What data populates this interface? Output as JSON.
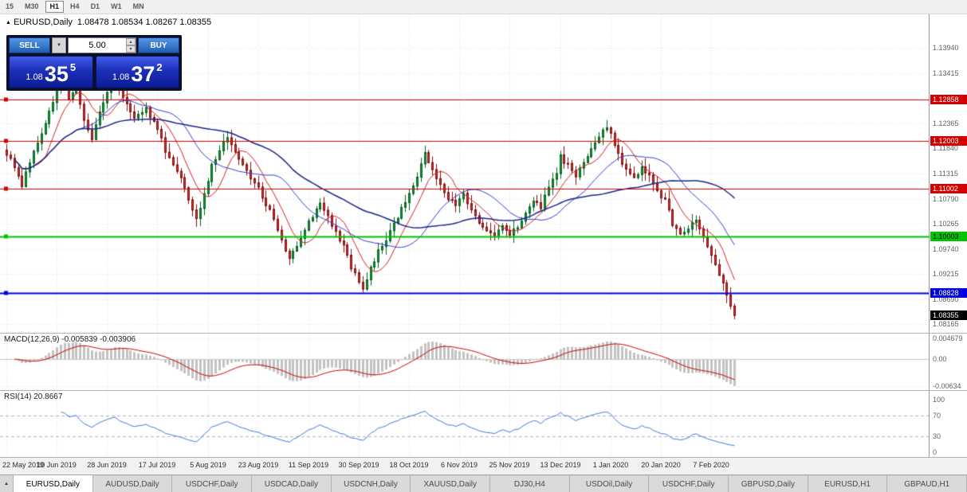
{
  "icons": {
    "dropdown": "▼",
    "spin_up": "▲",
    "spin_down": "▼",
    "title_marker": "▲",
    "tab_list": "▲"
  },
  "toolbar": {
    "timeframes": [
      {
        "label": "15"
      },
      {
        "label": "M30"
      },
      {
        "label": "H1",
        "active": true
      },
      {
        "label": "H4"
      },
      {
        "label": "D1"
      },
      {
        "label": "W1"
      },
      {
        "label": "MN"
      }
    ]
  },
  "chart": {
    "symbol_label": "EURUSD,Daily",
    "ohlc_text": "1.08478 1.08534 1.08267 1.08355",
    "price_axis_ticks": [
      {
        "label": "1.13940",
        "value": 1.1394
      },
      {
        "label": "1.13415",
        "value": 1.13415
      },
      {
        "label": "1.12890",
        "value": 1.1289
      },
      {
        "label": "1.12365",
        "value": 1.12365
      },
      {
        "label": "1.11840",
        "value": 1.1184
      },
      {
        "label": "1.11315",
        "value": 1.11315
      },
      {
        "label": "1.10790",
        "value": 1.1079
      },
      {
        "label": "1.10265",
        "value": 1.10265
      },
      {
        "label": "1.09740",
        "value": 1.0974
      },
      {
        "label": "1.09215",
        "value": 1.09215
      },
      {
        "label": "1.08690",
        "value": 1.0869
      },
      {
        "label": "1.08165",
        "value": 1.08165
      }
    ],
    "hlines": [
      {
        "label": "1.12858",
        "value": 1.12858,
        "color": "#d40000",
        "text_color": "#ffffff",
        "line_width": 1
      },
      {
        "label": "1.12003",
        "value": 1.12003,
        "color": "#d40000",
        "text_color": "#ffffff",
        "line_width": 1
      },
      {
        "label": "1.11002",
        "value": 1.11002,
        "color": "#d40000",
        "text_color": "#ffffff",
        "line_width": 1
      },
      {
        "label": "1.10003",
        "value": 1.10003,
        "color": "#00c400",
        "text_color": "#000000",
        "line_width": 2
      },
      {
        "label": "1.08828",
        "value": 1.08828,
        "color": "#0000dd",
        "text_color": "#ffffff",
        "line_width": 2
      }
    ],
    "current_price": {
      "label": "1.08355",
      "value": 1.08355,
      "bg": "#000000",
      "text_color": "#ffffff"
    },
    "dates": [
      {
        "label": "22 May 2019",
        "index": 0
      },
      {
        "label": "10 Jun 2019",
        "index": 13
      },
      {
        "label": "28 Jun 2019",
        "index": 26
      },
      {
        "label": "17 Jul 2019",
        "index": 39
      },
      {
        "label": "5 Aug 2019",
        "index": 52
      },
      {
        "label": "23 Aug 2019",
        "index": 65
      },
      {
        "label": "11 Sep 2019",
        "index": 78
      },
      {
        "label": "30 Sep 2019",
        "index": 91
      },
      {
        "label": "18 Oct 2019",
        "index": 104
      },
      {
        "label": "6 Nov 2019",
        "index": 117
      },
      {
        "label": "25 Nov 2019",
        "index": 130
      },
      {
        "label": "13 Dec 2019",
        "index": 143
      },
      {
        "label": "1 Jan 2020",
        "index": 156
      },
      {
        "label": "20 Jan 2020",
        "index": 169
      },
      {
        "label": "7 Feb 2020",
        "index": 182
      }
    ]
  },
  "trade_panel": {
    "sell_label": "SELL",
    "buy_label": "BUY",
    "volume": "5.00",
    "sell_price": {
      "prefix": "1.08",
      "big": "35",
      "sup": "5"
    },
    "buy_price": {
      "prefix": "1.08",
      "big": "37",
      "sup": "2"
    }
  },
  "indicators": {
    "macd": {
      "label": "MACD(12,26,9) -0.005839 -0.003906",
      "main_value": -0.005839,
      "signal_value": -0.003906,
      "axis_ticks": [
        {
          "label": "0.004679",
          "value": 0.004679
        },
        {
          "label": "0.00",
          "value": 0
        },
        {
          "label": "-0.00634",
          "value": -0.00634
        }
      ]
    },
    "rsi": {
      "label": "RSI(14) 20.8667",
      "value": 20.8667,
      "axis_ticks": [
        {
          "label": "100",
          "value": 100
        },
        {
          "label": "70",
          "value": 70
        },
        {
          "label": "30",
          "value": 30
        },
        {
          "label": "0",
          "value": 0
        }
      ]
    }
  },
  "tabs": [
    {
      "label": "EURUSD,Daily",
      "active": true
    },
    {
      "label": "AUDUSD,Daily"
    },
    {
      "label": "USDCHF,Daily"
    },
    {
      "label": "USDCAD,Daily"
    },
    {
      "label": "USDCNH,Daily"
    },
    {
      "label": "XAUUSD,Daily"
    },
    {
      "label": "DJ30,H4"
    },
    {
      "label": "USDOil,Daily"
    },
    {
      "label": "USDCHF,Daily"
    },
    {
      "label": "GBPUSD,Daily"
    },
    {
      "label": "EURUSD,H1"
    },
    {
      "label": "GBPAUD,H1"
    }
  ],
  "chart_data": {
    "type": "candlestick",
    "symbol": "EURUSD",
    "timeframe": "Daily",
    "candle_count": 189,
    "price_range": [
      1.0799,
      1.1464
    ],
    "first_date": "22 May 2019",
    "last_date": "13 Feb 2020",
    "close_anchors": [
      [
        0,
        1.1175
      ],
      [
        2,
        1.1142
      ],
      [
        4,
        1.1108
      ],
      [
        6,
        1.1158
      ],
      [
        9,
        1.1212
      ],
      [
        11,
        1.1262
      ],
      [
        13,
        1.1305
      ],
      [
        14,
        1.1328
      ],
      [
        16,
        1.1288
      ],
      [
        18,
        1.1315
      ],
      [
        20,
        1.124
      ],
      [
        22,
        1.1205
      ],
      [
        24,
        1.1258
      ],
      [
        26,
        1.1305
      ],
      [
        28,
        1.1335
      ],
      [
        30,
        1.1288
      ],
      [
        33,
        1.1252
      ],
      [
        36,
        1.1268
      ],
      [
        39,
        1.1225
      ],
      [
        41,
        1.1182
      ],
      [
        43,
        1.1152
      ],
      [
        45,
        1.1128
      ],
      [
        47,
        1.1082
      ],
      [
        49,
        1.104
      ],
      [
        51,
        1.1088
      ],
      [
        53,
        1.1148
      ],
      [
        55,
        1.1182
      ],
      [
        57,
        1.1205
      ],
      [
        59,
        1.118
      ],
      [
        61,
        1.1148
      ],
      [
        63,
        1.1122
      ],
      [
        65,
        1.1102
      ],
      [
        67,
        1.1068
      ],
      [
        69,
        1.1038
      ],
      [
        71,
        1.0992
      ],
      [
        73,
        1.0952
      ],
      [
        75,
        1.0985
      ],
      [
        77,
        1.1018
      ],
      [
        79,
        1.1042
      ],
      [
        81,
        1.1068
      ],
      [
        83,
        1.1042
      ],
      [
        85,
        1.1012
      ],
      [
        87,
        1.0978
      ],
      [
        89,
        1.0938
      ],
      [
        91,
        1.0908
      ],
      [
        92,
        1.0892
      ],
      [
        94,
        1.0932
      ],
      [
        96,
        1.0968
      ],
      [
        98,
        1.0995
      ],
      [
        100,
        1.1028
      ],
      [
        102,
        1.1058
      ],
      [
        104,
        1.1088
      ],
      [
        106,
        1.1122
      ],
      [
        108,
        1.1172
      ],
      [
        110,
        1.1142
      ],
      [
        112,
        1.1112
      ],
      [
        114,
        1.1078
      ],
      [
        116,
        1.1068
      ],
      [
        118,
        1.1088
      ],
      [
        120,
        1.1058
      ],
      [
        122,
        1.1032
      ],
      [
        124,
        1.1012
      ],
      [
        126,
        1.1005
      ],
      [
        128,
        1.1022
      ],
      [
        130,
        1.1002
      ],
      [
        132,
        1.1022
      ],
      [
        134,
        1.1052
      ],
      [
        136,
        1.1078
      ],
      [
        138,
        1.1062
      ],
      [
        140,
        1.1102
      ],
      [
        142,
        1.1128
      ],
      [
        143,
        1.1168
      ],
      [
        145,
        1.1148
      ],
      [
        147,
        1.1122
      ],
      [
        149,
        1.1158
      ],
      [
        151,
        1.1185
      ],
      [
        153,
        1.1208
      ],
      [
        155,
        1.1232
      ],
      [
        156,
        1.1215
      ],
      [
        158,
        1.1172
      ],
      [
        160,
        1.1142
      ],
      [
        162,
        1.1122
      ],
      [
        164,
        1.1148
      ],
      [
        166,
        1.1128
      ],
      [
        168,
        1.1095
      ],
      [
        170,
        1.1075
      ],
      [
        172,
        1.1028
      ],
      [
        174,
        1.1002
      ],
      [
        176,
        1.1015
      ],
      [
        178,
        1.1038
      ],
      [
        180,
        1.1002
      ],
      [
        182,
        1.0962
      ],
      [
        184,
        1.0922
      ],
      [
        186,
        1.0875
      ],
      [
        188,
        1.0836
      ]
    ],
    "bull_color": "#0ba23c",
    "bear_color": "#e23030",
    "moving_averages": [
      {
        "period": 8,
        "color": "#d62020",
        "width": 1
      },
      {
        "period": 20,
        "color": "#2b3fd0",
        "width": 1
      },
      {
        "period": 45,
        "color": "#1b2488",
        "width": 1.5
      }
    ],
    "macd": {
      "fast": 12,
      "slow": 26,
      "signal": 9,
      "range": [
        -0.0072,
        0.006
      ],
      "hist_color": "#c2c2c2",
      "signal_color": "#cc0000"
    },
    "rsi": {
      "period": 14,
      "color": "#3d7bd6",
      "levels": [
        70,
        30
      ]
    }
  }
}
